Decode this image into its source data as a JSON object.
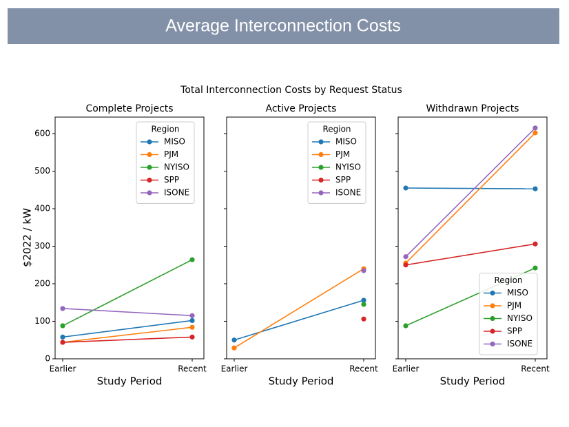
{
  "header": {
    "title": "Average Interconnection Costs"
  },
  "figure_title": "Total Interconnection Costs by Request Status",
  "chart_data": [
    {
      "type": "line",
      "title": "Complete Projects",
      "xlabel": "Study Period",
      "ylabel": "$2022 / kW",
      "categories": [
        "Earlier",
        "Recent"
      ],
      "ylim": [
        0,
        644
      ],
      "yticks": [
        0,
        100,
        200,
        300,
        400,
        500,
        600
      ],
      "legend_title": "Region",
      "legend_position": "upper right",
      "series": [
        {
          "name": "MISO",
          "color": "#1f77b4",
          "values": [
            58,
            102
          ]
        },
        {
          "name": "PJM",
          "color": "#ff7f0e",
          "values": [
            44,
            84
          ]
        },
        {
          "name": "NYISO",
          "color": "#2ca02c",
          "values": [
            88,
            264
          ]
        },
        {
          "name": "SPP",
          "color": "#d62728",
          "values": [
            44,
            58
          ]
        },
        {
          "name": "ISONE",
          "color": "#9467bd",
          "values": [
            134,
            115
          ]
        }
      ]
    },
    {
      "type": "line",
      "title": "Active Projects",
      "xlabel": "Study Period",
      "categories": [
        "Earlier",
        "Recent"
      ],
      "ylim": [
        0,
        644
      ],
      "yticks": [
        0,
        100,
        200,
        300,
        400,
        500,
        600
      ],
      "legend_title": "Region",
      "legend_position": "upper right",
      "series": [
        {
          "name": "MISO",
          "color": "#1f77b4",
          "values": [
            50,
            156
          ]
        },
        {
          "name": "PJM",
          "color": "#ff7f0e",
          "values": [
            29,
            240
          ]
        },
        {
          "name": "NYISO",
          "color": "#2ca02c",
          "values": [
            null,
            145
          ]
        },
        {
          "name": "SPP",
          "color": "#d62728",
          "values": [
            null,
            106
          ]
        },
        {
          "name": "ISONE",
          "color": "#9467bd",
          "values": [
            null,
            235
          ]
        }
      ]
    },
    {
      "type": "line",
      "title": "Withdrawn Projects",
      "xlabel": "Study Period",
      "categories": [
        "Earlier",
        "Recent"
      ],
      "ylim": [
        0,
        644
      ],
      "yticks": [
        0,
        100,
        200,
        300,
        400,
        500,
        600
      ],
      "legend_title": "Region",
      "legend_position": "lower right",
      "series": [
        {
          "name": "MISO",
          "color": "#1f77b4",
          "values": [
            455,
            453
          ]
        },
        {
          "name": "PJM",
          "color": "#ff7f0e",
          "values": [
            255,
            602
          ]
        },
        {
          "name": "NYISO",
          "color": "#2ca02c",
          "values": [
            88,
            242
          ]
        },
        {
          "name": "SPP",
          "color": "#d62728",
          "values": [
            250,
            306
          ]
        },
        {
          "name": "ISONE",
          "color": "#9467bd",
          "values": [
            272,
            615
          ]
        }
      ]
    }
  ]
}
